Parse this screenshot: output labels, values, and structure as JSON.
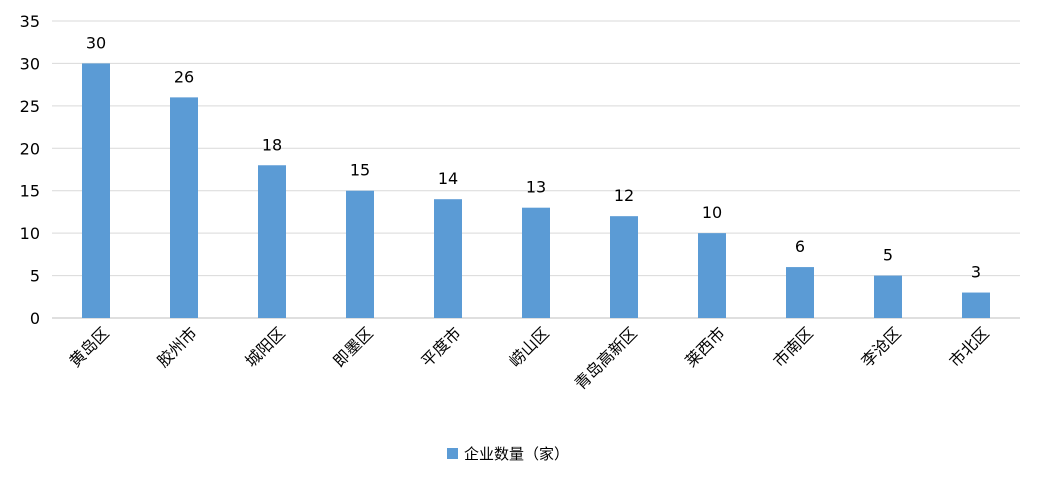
{
  "chart_data": {
    "type": "bar",
    "title": "",
    "xlabel": "",
    "ylabel": "",
    "categories": [
      "黄岛区",
      "胶州市",
      "城阳区",
      "即墨区",
      "平度市",
      "崂山区",
      "青岛高新区",
      "莱西市",
      "市南区",
      "李沧区",
      "市北区"
    ],
    "series": [
      {
        "name": "企业数量（家）",
        "values": [
          30,
          26,
          18,
          15,
          14,
          13,
          12,
          10,
          6,
          5,
          3
        ],
        "color": "#5B9BD5"
      }
    ],
    "ylim": [
      0,
      35
    ],
    "yticks": [
      0,
      5,
      10,
      15,
      20,
      25,
      30,
      35
    ],
    "grid": true,
    "data_labels": true,
    "legend_position": "bottom"
  }
}
